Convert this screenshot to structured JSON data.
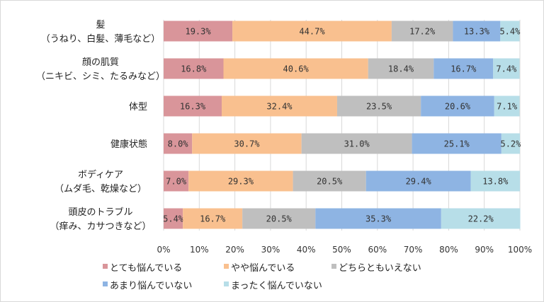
{
  "chart_data": {
    "type": "bar",
    "orientation": "horizontal",
    "stacked": true,
    "categories": [
      [
        "髪",
        "（うねり、白髪、薄毛など）"
      ],
      [
        "顔の肌質",
        "（ニキビ、シミ、たるみなど）"
      ],
      [
        "体型"
      ],
      [
        "健康状態"
      ],
      [
        "ボディケア",
        "（ムダ毛、乾燥など）"
      ],
      [
        "頭皮のトラブル",
        "（痒み、カサつきなど）"
      ]
    ],
    "series": [
      {
        "name": "とても悩んでいる",
        "color": "#d9959a",
        "values": [
          19.3,
          16.8,
          16.3,
          8.0,
          7.0,
          5.4
        ]
      },
      {
        "name": "やや悩んでいる",
        "color": "#f9c08f",
        "values": [
          44.7,
          40.6,
          32.4,
          30.7,
          29.3,
          16.7
        ]
      },
      {
        "name": "どちらともいえない",
        "color": "#bfbfbf",
        "values": [
          17.2,
          18.4,
          23.5,
          31.0,
          20.5,
          20.5
        ]
      },
      {
        "name": "あまり悩んでいない",
        "color": "#8eb4e3",
        "values": [
          13.3,
          16.7,
          20.6,
          25.1,
          29.4,
          35.3
        ]
      },
      {
        "name": "まったく悩んでいない",
        "color": "#b7dee8",
        "values": [
          5.4,
          7.4,
          7.1,
          5.2,
          13.8,
          22.2
        ]
      }
    ],
    "xlim": [
      0,
      100
    ],
    "xticks": [
      "0%",
      "10%",
      "20%",
      "30%",
      "40%",
      "50%",
      "60%",
      "70%",
      "80%",
      "90%",
      "100%"
    ],
    "grid": true,
    "legend": "bottom",
    "title": "",
    "xlabel": "",
    "ylabel": ""
  }
}
